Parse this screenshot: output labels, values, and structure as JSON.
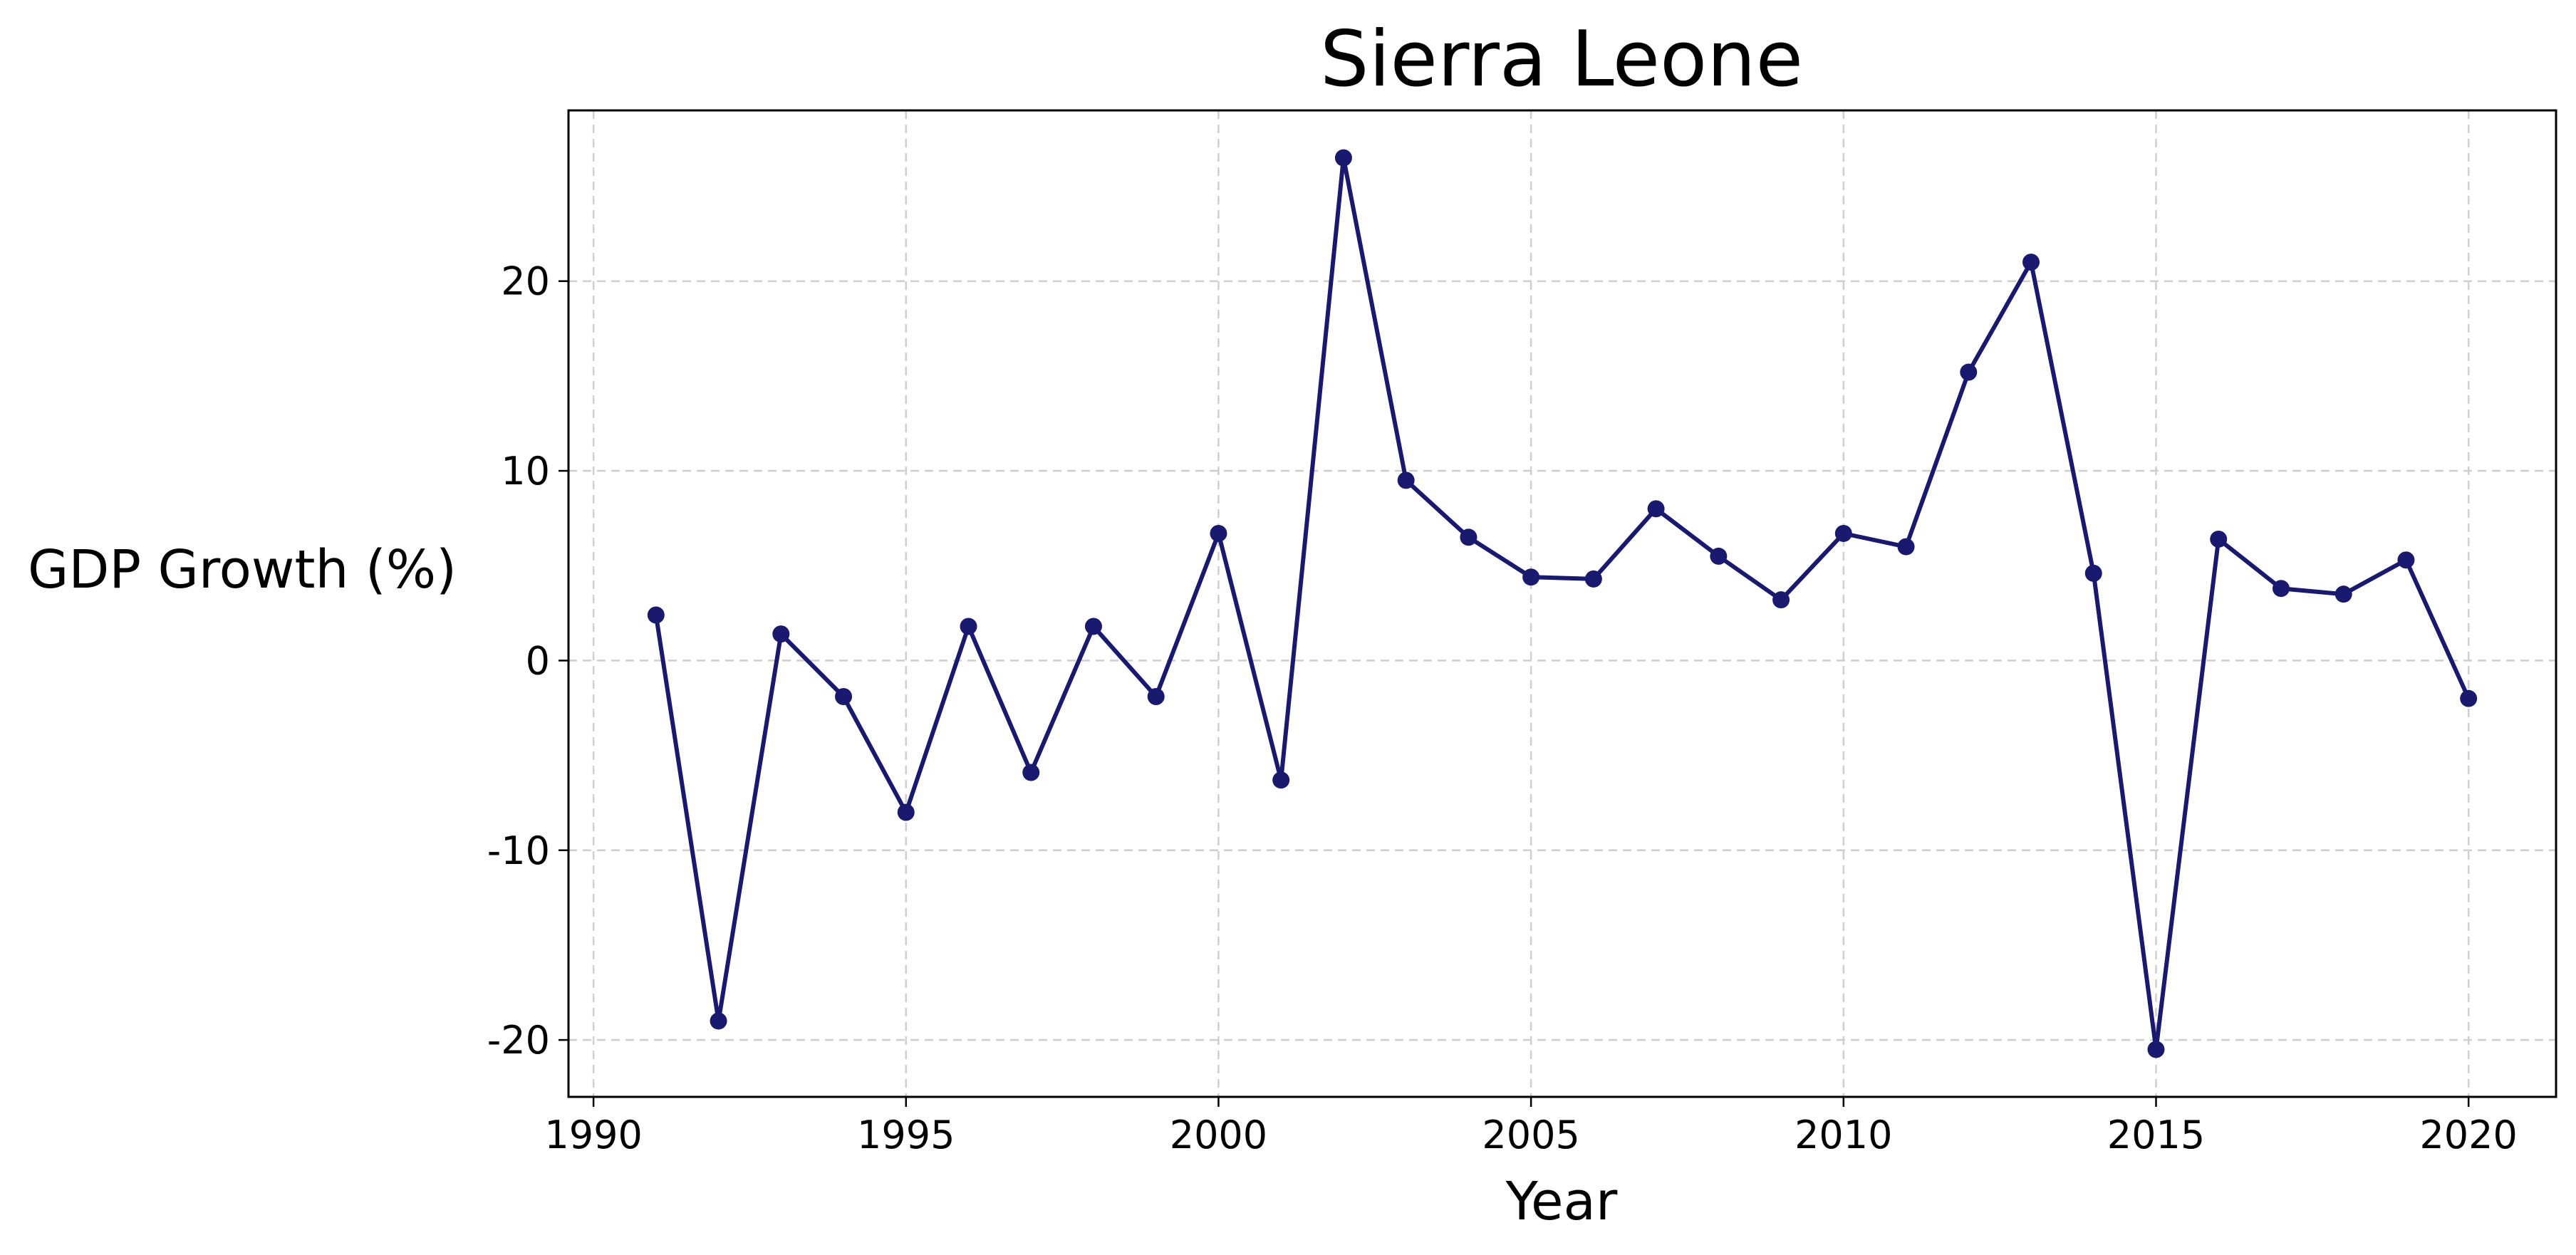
{
  "chart_data": {
    "type": "line",
    "title": "Sierra Leone",
    "xlabel": "Year",
    "ylabel": "GDP Growth (%)",
    "xlim": [
      1989.6,
      2021.4
    ],
    "ylim": [
      -23,
      29
    ],
    "xticks": [
      1990,
      1995,
      2000,
      2005,
      2010,
      2015,
      2020
    ],
    "yticks": [
      -20,
      -10,
      0,
      10,
      20
    ],
    "ytick_labels": [
      "-20",
      "-10",
      "0",
      "10",
      "20"
    ],
    "grid": true,
    "line_color": "#191970",
    "marker": "circle",
    "series": [
      {
        "x": [
          1991,
          1992,
          1993,
          1994,
          1995,
          1996,
          1997,
          1998,
          1999,
          2000,
          2001,
          2002,
          2003,
          2004,
          2005,
          2006,
          2007,
          2008,
          2009,
          2010,
          2011,
          2012,
          2013,
          2014,
          2015,
          2016,
          2017,
          2018,
          2019,
          2020
        ],
        "values": [
          2.4,
          -19.0,
          1.4,
          -1.9,
          -8.0,
          1.8,
          -5.9,
          1.8,
          -1.9,
          6.7,
          -6.3,
          26.5,
          9.5,
          6.5,
          4.4,
          4.3,
          8.0,
          5.5,
          3.2,
          6.7,
          6.0,
          15.2,
          21.0,
          4.6,
          -20.5,
          6.4,
          3.8,
          3.5,
          5.3,
          -2.0
        ]
      }
    ]
  }
}
